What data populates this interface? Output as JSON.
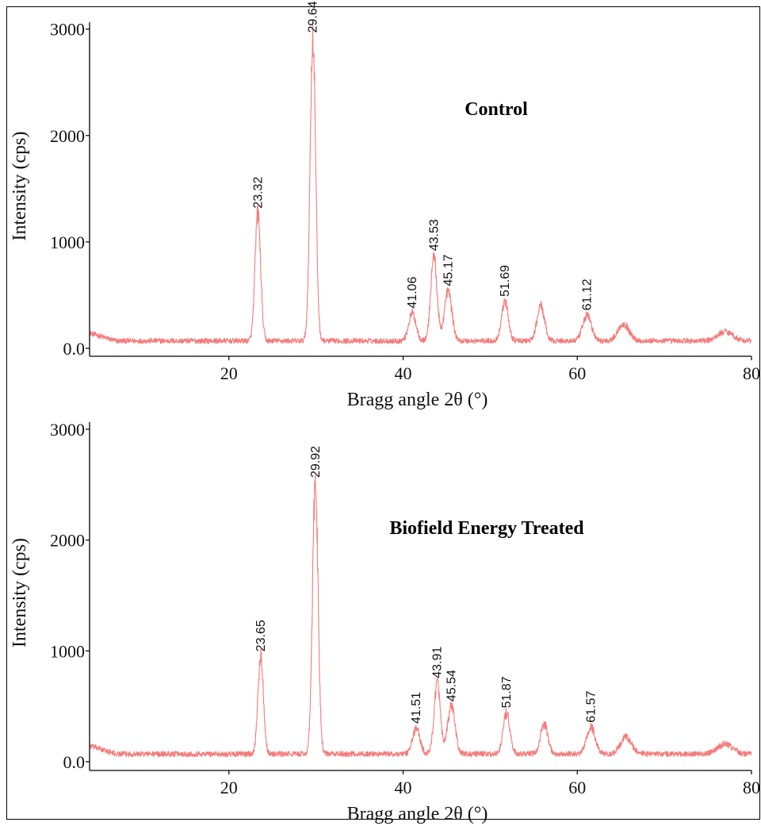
{
  "colors": {
    "trace": "#f47a7a",
    "axis": "#000000",
    "background": "#ffffff"
  },
  "chart_data": [
    {
      "type": "line",
      "title": "Control",
      "xlabel": "Bragg angle 2θ (°)",
      "ylabel": "Intensity (cps)",
      "xlim": [
        4,
        80
      ],
      "ylim": [
        0,
        3050
      ],
      "xticks": [
        20,
        40,
        60,
        80
      ],
      "yticks": [
        0,
        1000,
        2000,
        3000
      ],
      "ytick_labels": [
        "0.0",
        "1000",
        "2000",
        "3000"
      ],
      "grid": false,
      "baseline": 70,
      "peaks": [
        {
          "x": 23.32,
          "y": 1200,
          "w": 0.45,
          "label": "23.32"
        },
        {
          "x": 29.64,
          "y": 2850,
          "w": 0.45,
          "label": "29.64"
        },
        {
          "x": 41.06,
          "y": 260,
          "w": 0.6,
          "label": "41.06"
        },
        {
          "x": 43.53,
          "y": 800,
          "w": 0.5,
          "label": "43.53"
        },
        {
          "x": 45.17,
          "y": 470,
          "w": 0.6,
          "label": "45.17"
        },
        {
          "x": 51.69,
          "y": 370,
          "w": 0.55,
          "label": "51.69"
        },
        {
          "x": 55.8,
          "y": 330,
          "w": 0.6,
          "label": ""
        },
        {
          "x": 61.12,
          "y": 240,
          "w": 0.7,
          "label": "61.12"
        },
        {
          "x": 65.3,
          "y": 160,
          "w": 0.9,
          "label": ""
        },
        {
          "x": 77.0,
          "y": 90,
          "w": 1.2,
          "label": ""
        }
      ]
    },
    {
      "type": "line",
      "title": "Biofield Energy Treated",
      "xlabel": "Bragg angle 2θ (°)",
      "ylabel": "Intensity (cps)",
      "xlim": [
        4,
        80
      ],
      "ylim": [
        0,
        3050
      ],
      "xticks": [
        20,
        40,
        60,
        80
      ],
      "yticks": [
        0,
        1000,
        2000,
        3000
      ],
      "ytick_labels": [
        "0.0",
        "1000",
        "2000",
        "3000"
      ],
      "grid": false,
      "baseline": 70,
      "peaks": [
        {
          "x": 23.65,
          "y": 880,
          "w": 0.45,
          "label": "23.65"
        },
        {
          "x": 29.92,
          "y": 2450,
          "w": 0.45,
          "label": "29.92"
        },
        {
          "x": 41.51,
          "y": 230,
          "w": 0.6,
          "label": "41.51"
        },
        {
          "x": 43.91,
          "y": 640,
          "w": 0.5,
          "label": "43.91"
        },
        {
          "x": 45.54,
          "y": 430,
          "w": 0.6,
          "label": "45.54"
        },
        {
          "x": 51.87,
          "y": 370,
          "w": 0.55,
          "label": "51.87"
        },
        {
          "x": 56.2,
          "y": 270,
          "w": 0.6,
          "label": ""
        },
        {
          "x": 61.57,
          "y": 240,
          "w": 0.7,
          "label": "61.57"
        },
        {
          "x": 65.6,
          "y": 150,
          "w": 0.9,
          "label": ""
        },
        {
          "x": 77.0,
          "y": 90,
          "w": 1.2,
          "label": ""
        }
      ]
    }
  ]
}
